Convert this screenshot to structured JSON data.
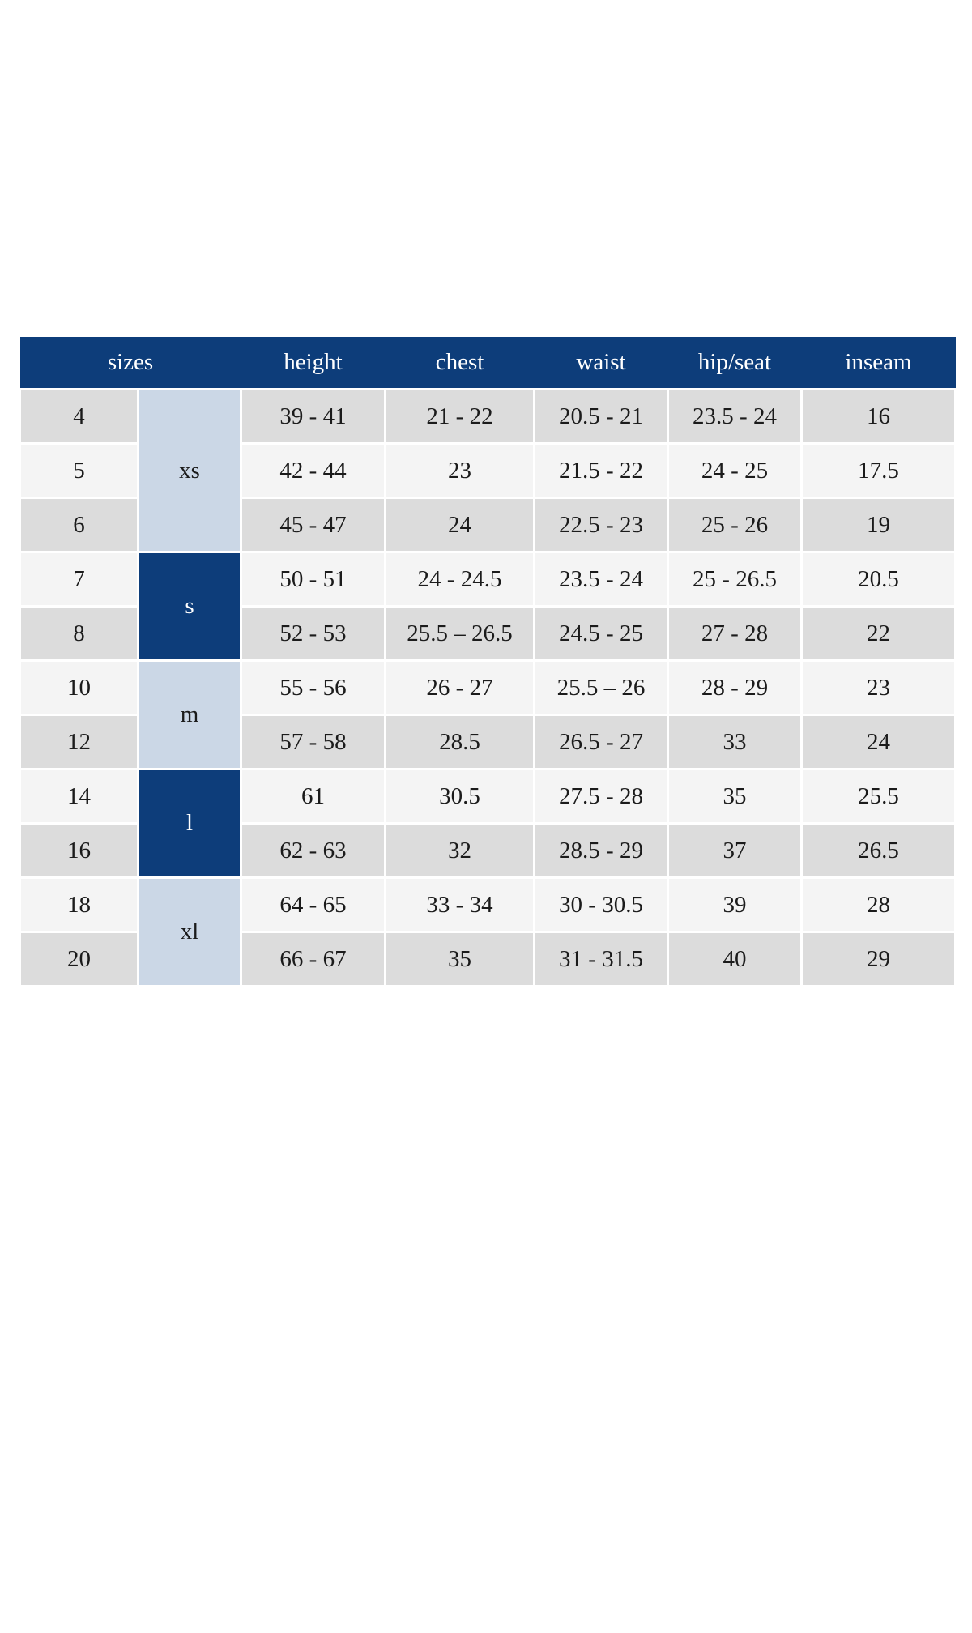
{
  "colors": {
    "header_bg": "#0d3d7a",
    "header_text": "#ffffff",
    "group_dark_bg": "#0d3d7a",
    "group_light_bg": "#cbd7e6",
    "row_dark_bg": "#dcdcdc",
    "row_light_bg": "#f4f4f4",
    "border": "#ffffff",
    "text": "#1b1b1b"
  },
  "chart_data": {
    "type": "table",
    "title": "",
    "columns": [
      "sizes",
      "height",
      "chest",
      "waist",
      "hip/seat",
      "inseam"
    ],
    "groups": [
      {
        "label": "xs",
        "variant": "light",
        "rows": [
          {
            "size": "4",
            "height": "39 - 41",
            "chest": "21 - 22",
            "waist": "20.5 - 21",
            "hip_seat": "23.5 - 24",
            "inseam": "16"
          },
          {
            "size": "5",
            "height": "42 - 44",
            "chest": "23",
            "waist": "21.5 - 22",
            "hip_seat": "24 - 25",
            "inseam": "17.5"
          },
          {
            "size": "6",
            "height": "45 - 47",
            "chest": "24",
            "waist": "22.5 - 23",
            "hip_seat": "25 - 26",
            "inseam": "19"
          }
        ]
      },
      {
        "label": "s",
        "variant": "dark",
        "rows": [
          {
            "size": "7",
            "height": "50 - 51",
            "chest": "24 - 24.5",
            "waist": "23.5 - 24",
            "hip_seat": "25 - 26.5",
            "inseam": "20.5"
          },
          {
            "size": "8",
            "height": "52 - 53",
            "chest": "25.5 – 26.5",
            "waist": "24.5 - 25",
            "hip_seat": "27 - 28",
            "inseam": "22"
          }
        ]
      },
      {
        "label": "m",
        "variant": "light",
        "rows": [
          {
            "size": "10",
            "height": "55 - 56",
            "chest": "26 - 27",
            "waist": "25.5 – 26",
            "hip_seat": "28 - 29",
            "inseam": "23"
          },
          {
            "size": "12",
            "height": "57 - 58",
            "chest": "28.5",
            "waist": "26.5 - 27",
            "hip_seat": "33",
            "inseam": "24"
          }
        ]
      },
      {
        "label": "l",
        "variant": "dark",
        "rows": [
          {
            "size": "14",
            "height": "61",
            "chest": "30.5",
            "waist": "27.5 - 28",
            "hip_seat": "35",
            "inseam": "25.5"
          },
          {
            "size": "16",
            "height": "62 - 63",
            "chest": "32",
            "waist": "28.5 - 29",
            "hip_seat": "37",
            "inseam": "26.5"
          }
        ]
      },
      {
        "label": "xl",
        "variant": "light",
        "rows": [
          {
            "size": "18",
            "height": "64 - 65",
            "chest": "33 - 34",
            "waist": "30 - 30.5",
            "hip_seat": "39",
            "inseam": "28"
          },
          {
            "size": "20",
            "height": "66 - 67",
            "chest": "35",
            "waist": "31 - 31.5",
            "hip_seat": "40",
            "inseam": "29"
          }
        ]
      }
    ]
  }
}
